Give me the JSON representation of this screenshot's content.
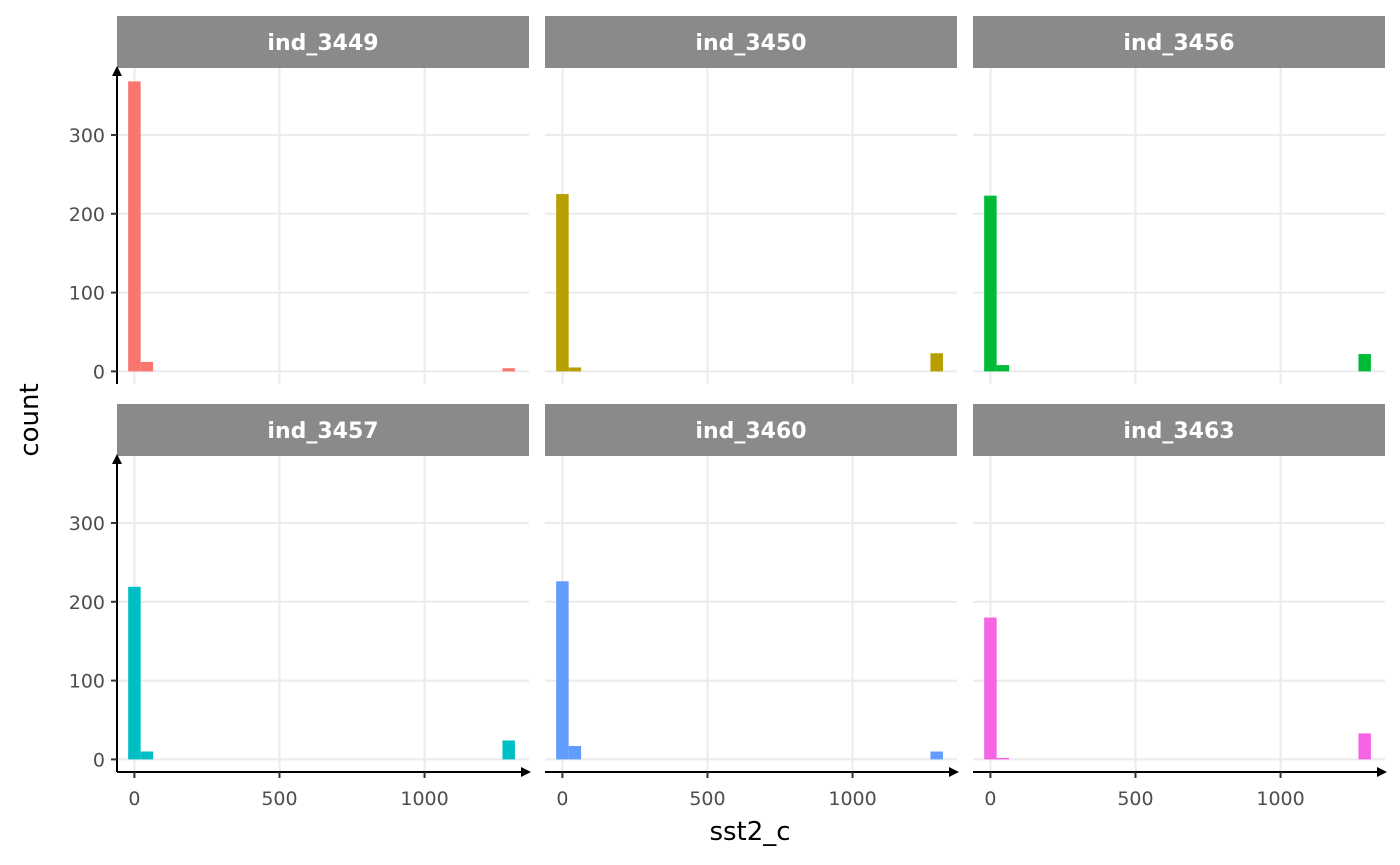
{
  "chart_data": {
    "type": "bar",
    "chart_kind": "faceted histogram",
    "title": "",
    "xlabel": "sst2_c",
    "ylabel": "count",
    "xlim": [
      -60,
      1360
    ],
    "ylim": [
      -16,
      385
    ],
    "x_ticks": [
      0,
      500,
      1000
    ],
    "x_tick_labels": [
      "0",
      "500",
      "1000"
    ],
    "y_ticks": [
      0,
      100,
      200,
      300
    ],
    "y_tick_labels": [
      "0",
      "100",
      "200",
      "300"
    ],
    "grid": true,
    "legend": "none",
    "bin_width": 43,
    "facets": [
      {
        "name": "ind_3449",
        "color": "#F8766D",
        "bins": [
          {
            "x": 0,
            "count": 368
          },
          {
            "x": 43,
            "count": 12
          },
          {
            "x": 1290,
            "count": 4
          }
        ]
      },
      {
        "name": "ind_3450",
        "color": "#B79F00",
        "bins": [
          {
            "x": 0,
            "count": 225
          },
          {
            "x": 43,
            "count": 5
          },
          {
            "x": 1290,
            "count": 23
          }
        ]
      },
      {
        "name": "ind_3456",
        "color": "#00BA38",
        "bins": [
          {
            "x": 0,
            "count": 223
          },
          {
            "x": 43,
            "count": 8
          },
          {
            "x": 1290,
            "count": 22
          }
        ]
      },
      {
        "name": "ind_3457",
        "color": "#00BFC4",
        "bins": [
          {
            "x": 0,
            "count": 219
          },
          {
            "x": 43,
            "count": 10
          },
          {
            "x": 1290,
            "count": 24
          }
        ]
      },
      {
        "name": "ind_3460",
        "color": "#619CFF",
        "bins": [
          {
            "x": 0,
            "count": 226
          },
          {
            "x": 43,
            "count": 17
          },
          {
            "x": 1290,
            "count": 10
          }
        ]
      },
      {
        "name": "ind_3463",
        "color": "#F564E3",
        "bins": [
          {
            "x": 0,
            "count": 180
          },
          {
            "x": 43,
            "count": 2
          },
          {
            "x": 1290,
            "count": 33
          }
        ]
      }
    ]
  }
}
